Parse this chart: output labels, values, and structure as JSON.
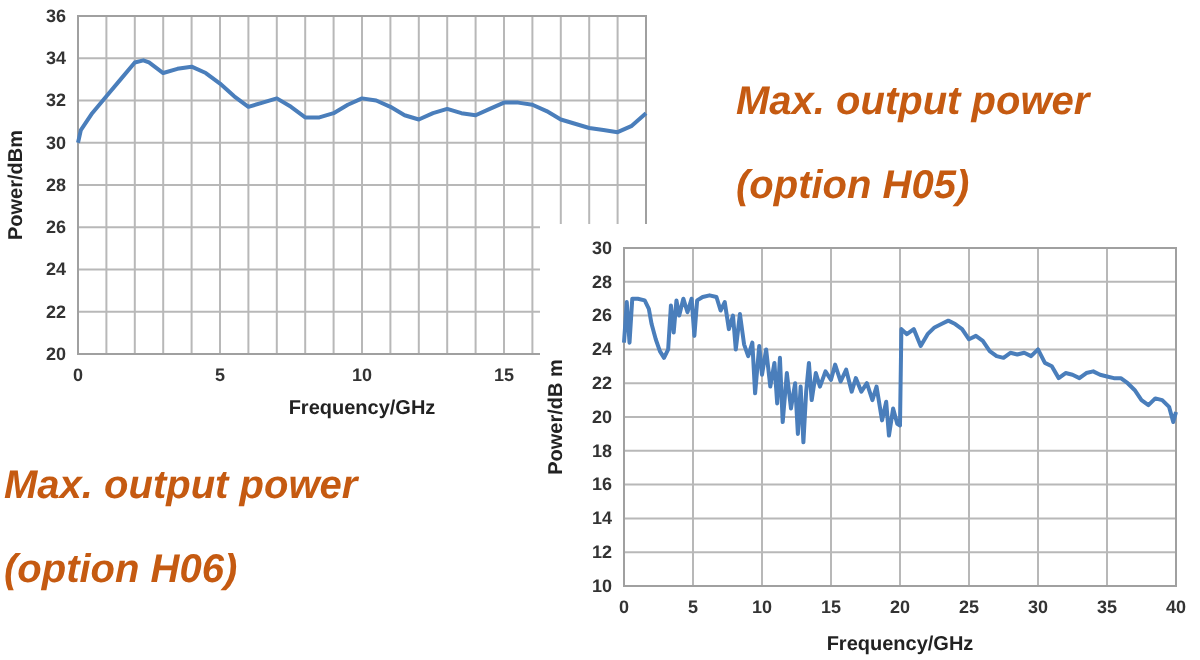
{
  "chart_data": [
    {
      "type": "line",
      "xlabel": "Frequency/GHz",
      "ylabel": "Power/dBm",
      "annotations": [
        "Max. output power (option H06)"
      ],
      "grid": true,
      "marker": "none",
      "line_style": "solid",
      "xlim": [
        0,
        20
      ],
      "ylim": [
        20,
        36
      ],
      "xticks": [
        0,
        {
          "value": 1,
          "label": null
        },
        {
          "value": 2,
          "label": null
        },
        {
          "value": 3,
          "label": null
        },
        {
          "value": 4,
          "label": null
        },
        5,
        {
          "value": 6,
          "label": null
        },
        {
          "value": 7,
          "label": null
        },
        {
          "value": 8,
          "label": null
        },
        {
          "value": 9,
          "label": null
        },
        10,
        {
          "value": 11,
          "label": null
        },
        {
          "value": 12,
          "label": null
        },
        {
          "value": 13,
          "label": null
        },
        {
          "value": 14,
          "label": null
        },
        15,
        {
          "value": 16,
          "label": null
        },
        {
          "value": 17,
          "label": null
        },
        {
          "value": 18,
          "label": null
        },
        {
          "value": 19,
          "label": null
        },
        {
          "value": 20,
          "label": null
        }
      ],
      "yticks": [
        20,
        22,
        24,
        26,
        28,
        30,
        32,
        34,
        36
      ],
      "x": [
        0,
        0.1,
        0.5,
        1,
        1.5,
        2,
        2.3,
        2.5,
        3,
        3.5,
        4,
        4.5,
        5,
        5.5,
        6,
        6.5,
        7,
        7.5,
        8,
        8.5,
        9,
        9.5,
        10,
        10.5,
        11,
        11.5,
        12,
        12.5,
        13,
        13.5,
        14,
        14.5,
        15,
        15.5,
        16,
        16.5,
        17,
        17.5,
        18,
        18.5,
        19,
        19.5,
        20
      ],
      "series": [
        {
          "color": "#4a7ebb",
          "values": [
            30.0,
            30.6,
            31.4,
            32.2,
            33.0,
            33.8,
            33.9,
            33.8,
            33.3,
            33.5,
            33.6,
            33.3,
            32.8,
            32.2,
            31.7,
            31.9,
            32.1,
            31.7,
            31.2,
            31.2,
            31.4,
            31.8,
            32.1,
            32.0,
            31.7,
            31.3,
            31.1,
            31.4,
            31.6,
            31.4,
            31.3,
            31.6,
            31.9,
            31.9,
            31.8,
            31.5,
            31.1,
            30.9,
            30.7,
            30.6,
            30.5,
            30.8,
            31.4
          ]
        }
      ]
    },
    {
      "type": "line",
      "xlabel": "Frequency/GHz",
      "ylabel": "Power/dB m",
      "annotations": [
        "Max. output power (option H05)"
      ],
      "grid": true,
      "marker": "none",
      "line_style": "solid",
      "xlim": [
        0,
        40
      ],
      "ylim": [
        10,
        30
      ],
      "xticks": [
        0,
        5,
        10,
        15,
        20,
        25,
        30,
        35,
        40
      ],
      "yticks": [
        10,
        12,
        14,
        16,
        18,
        20,
        22,
        24,
        26,
        28,
        30
      ],
      "x": [
        0,
        0.2,
        0.4,
        0.6,
        1,
        1.5,
        1.8,
        2,
        2.3,
        2.6,
        2.9,
        3.2,
        3.4,
        3.6,
        3.8,
        4,
        4.3,
        4.6,
        4.9,
        5.1,
        5.3,
        5.7,
        6.2,
        6.7,
        7,
        7.3,
        7.6,
        7.9,
        8.1,
        8.4,
        8.7,
        9,
        9.3,
        9.5,
        9.8,
        10,
        10.3,
        10.6,
        10.9,
        11.1,
        11.3,
        11.5,
        11.8,
        12.1,
        12.4,
        12.6,
        12.8,
        13,
        13.2,
        13.4,
        13.6,
        13.9,
        14.2,
        14.6,
        15,
        15.3,
        15.7,
        16.1,
        16.5,
        16.8,
        17.2,
        17.6,
        18,
        18.3,
        18.7,
        19,
        19.2,
        19.5,
        19.8,
        20,
        20.1,
        20.5,
        21,
        21.5,
        22,
        22.5,
        23,
        23.5,
        24,
        24.5,
        25,
        25.5,
        26,
        26.5,
        27,
        27.5,
        28,
        28.5,
        29,
        29.5,
        30,
        30.5,
        31,
        31.5,
        32,
        32.5,
        33,
        33.5,
        34,
        34.5,
        35,
        35.5,
        36,
        36.5,
        37,
        37.5,
        38,
        38.5,
        39,
        39.5,
        39.8,
        40
      ],
      "series": [
        {
          "color": "#4a7ebb",
          "values": [
            24.4,
            26.8,
            24.4,
            27.0,
            27.0,
            26.9,
            26.4,
            25.5,
            24.6,
            23.9,
            23.5,
            24.0,
            26.6,
            25.0,
            26.9,
            26.0,
            27.0,
            26.2,
            27.0,
            24.8,
            26.9,
            27.1,
            27.2,
            27.1,
            26.3,
            26.8,
            25.2,
            26.0,
            24.0,
            26.1,
            24.3,
            23.6,
            24.4,
            21.4,
            24.2,
            22.5,
            24.0,
            21.8,
            23.2,
            20.8,
            23.5,
            19.7,
            22.6,
            20.5,
            22.0,
            19.0,
            21.8,
            18.5,
            21.5,
            23.2,
            21.0,
            22.6,
            21.8,
            22.7,
            22.2,
            23.1,
            22.1,
            22.8,
            21.5,
            22.3,
            21.5,
            22.0,
            21.0,
            21.8,
            19.8,
            20.9,
            18.9,
            20.5,
            19.6,
            19.5,
            25.2,
            24.9,
            25.2,
            24.2,
            24.9,
            25.3,
            25.5,
            25.7,
            25.5,
            25.2,
            24.6,
            24.8,
            24.5,
            23.9,
            23.6,
            23.5,
            23.8,
            23.7,
            23.8,
            23.6,
            24.0,
            23.2,
            23.0,
            22.3,
            22.6,
            22.5,
            22.3,
            22.6,
            22.7,
            22.5,
            22.4,
            22.3,
            22.3,
            22.0,
            21.6,
            21.0,
            20.7,
            21.1,
            21.0,
            20.6,
            19.7,
            20.3
          ]
        }
      ]
    }
  ]
}
